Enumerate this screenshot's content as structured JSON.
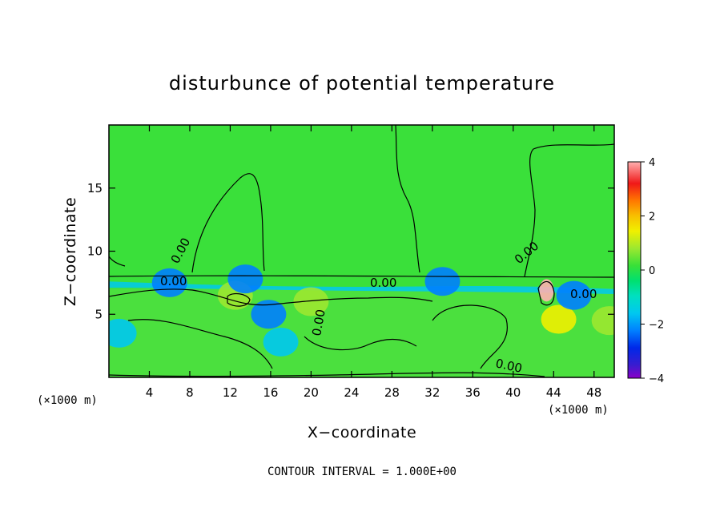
{
  "chart_data": {
    "type": "heatmap",
    "title": "disturbunce of potential temperature",
    "xlabel": "X−coordinate",
    "ylabel": "Z−coordinate",
    "x_unit": "(×1000 m)",
    "y_unit": "(×1000 m)",
    "xlim": [
      0,
      50
    ],
    "ylim": [
      0,
      20
    ],
    "x_ticks": [
      4,
      8,
      12,
      16,
      20,
      24,
      28,
      32,
      36,
      40,
      44,
      48
    ],
    "x_tick_labels": [
      "4",
      "8",
      "12",
      "16",
      "20",
      "24",
      "28",
      "32",
      "36",
      "40",
      "44",
      "48"
    ],
    "y_ticks": [
      5,
      10,
      15
    ],
    "y_tick_labels": [
      "5",
      "10",
      "15"
    ],
    "colorbar": {
      "range": [
        -4,
        4
      ],
      "ticks": [
        -4,
        -2,
        0,
        2,
        4
      ],
      "tick_labels": [
        "−4",
        "−2",
        "0",
        "2",
        "4"
      ]
    },
    "contour_labels": [
      "0.00",
      "0.00",
      "0.00",
      "0.00",
      "0.00",
      "0.00",
      "0.00"
    ],
    "contour_interval_text": "CONTOUR INTERVAL = 1.000E+00",
    "field_note": {
      "background_value": 0.0,
      "features": [
        {
          "x": 43.3,
          "z": 6.9,
          "value": 4.0
        },
        {
          "x": 12.5,
          "z": 6.5,
          "value": 1.3
        },
        {
          "x": 20.0,
          "z": 6.0,
          "value": 1.2
        },
        {
          "x": 44.5,
          "z": 4.6,
          "value": 1.4
        },
        {
          "x": 49.5,
          "z": 4.5,
          "value": 1.0
        },
        {
          "x": 6.0,
          "z": 7.5,
          "value": -1.8
        },
        {
          "x": 13.5,
          "z": 7.8,
          "value": -2.0
        },
        {
          "x": 15.8,
          "z": 5.0,
          "value": -1.5
        },
        {
          "x": 17.0,
          "z": 2.8,
          "value": -1.2
        },
        {
          "x": 33.0,
          "z": 7.6,
          "value": -1.8
        },
        {
          "x": 46.0,
          "z": 6.5,
          "value": -2.0
        },
        {
          "x": 1.0,
          "z": 3.5,
          "value": -1.0
        }
      ]
    }
  }
}
